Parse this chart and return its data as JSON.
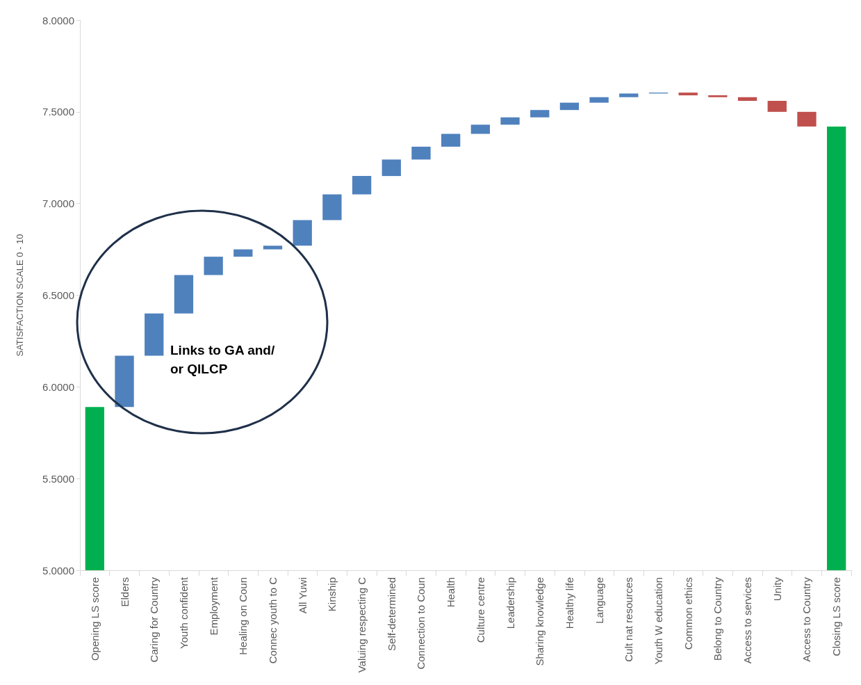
{
  "chart_data": {
    "type": "bar",
    "ylabel": "SATISFACTION SCALE 0 - 10",
    "categories": [
      "Opening LS score",
      "Elders",
      "Caring for Country",
      "Youth confident",
      "Employment",
      "Healing on Coun",
      "Connec youth to C",
      "All Yuwi",
      "Kinship",
      "Valuing respecting C",
      "Self-determined",
      "Connection to Coun",
      "Health",
      "Culture centre",
      "Leadership",
      "Sharing knowledge",
      "Healthy life",
      "Language",
      "Cult nat resources",
      "Youth W education",
      "Common ethics",
      "Belong to Country",
      "Access to services",
      "Unity",
      "Access to Country",
      "Closing LS score"
    ],
    "base": [
      5,
      5.89,
      6.17,
      6.4,
      6.61,
      6.71,
      6.75,
      6.77,
      6.91,
      7.05,
      7.15,
      7.24,
      7.31,
      7.38,
      7.43,
      7.47,
      7.51,
      7.55,
      7.58,
      7.6,
      7.605,
      7.59,
      7.58,
      7.56,
      7.5,
      5
    ],
    "values": [
      0.89,
      0.28,
      0.23,
      0.21,
      0.1,
      0.04,
      0.02,
      0.14,
      0.14,
      0.1,
      0.09,
      0.07,
      0.07,
      0.05,
      0.04,
      0.04,
      0.04,
      0.03,
      0.02,
      0.005,
      -0.015,
      -0.01,
      -0.02,
      -0.06,
      -0.08,
      2.42
    ],
    "colors": [
      "#00b050",
      "#4f81bd",
      "#4f81bd",
      "#4f81bd",
      "#4f81bd",
      "#4f81bd",
      "#4f81bd",
      "#4f81bd",
      "#4f81bd",
      "#4f81bd",
      "#4f81bd",
      "#4f81bd",
      "#4f81bd",
      "#4f81bd",
      "#4f81bd",
      "#4f81bd",
      "#4f81bd",
      "#4f81bd",
      "#4f81bd",
      "#4f81bd",
      "#c0504d",
      "#c0504d",
      "#c0504d",
      "#c0504d",
      "#c0504d",
      "#00b050"
    ],
    "ylim": [
      5,
      8
    ],
    "yticks": [
      {
        "value": 5,
        "label": "5.0000"
      },
      {
        "value": 5.5,
        "label": "5.5000"
      },
      {
        "value": 6,
        "label": "6.0000"
      },
      {
        "value": 6.5,
        "label": "6.5000"
      },
      {
        "value": 7,
        "label": "7.0000"
      },
      {
        "value": 7.5,
        "label": "7.5000"
      },
      {
        "value": 8,
        "label": "8.0000"
      }
    ],
    "grid": false,
    "annotations": [
      "Links to GA and/or QILCP"
    ]
  }
}
